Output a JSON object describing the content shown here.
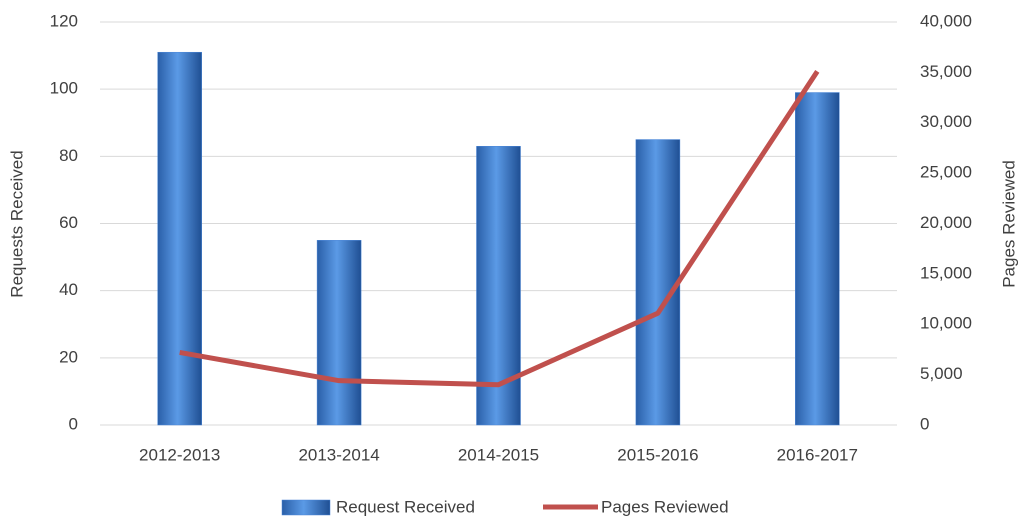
{
  "chart_data": {
    "type": "bar_line",
    "categories": [
      "2012-2013",
      "2013-2014",
      "2014-2015",
      "2015-2016",
      "2016-2017"
    ],
    "series": [
      {
        "name": "Request Received",
        "type": "bar",
        "color": "#4a86d8",
        "values": [
          111,
          55,
          83,
          85,
          99
        ]
      },
      {
        "name": "Pages Reviewed",
        "type": "line",
        "axis": "y2",
        "color": "#c0504d",
        "values": [
          7200,
          4400,
          4000,
          11100,
          35100
        ]
      }
    ],
    "ylabel": "Requests Received",
    "y2label": "Pages Reviewed",
    "ylim": [
      0,
      120
    ],
    "yticks": [
      0,
      20,
      40,
      60,
      80,
      100,
      120
    ],
    "y2lim": [
      0,
      40000
    ],
    "y2ticks": [
      0,
      {
        "value": 5000,
        "label": "5,000"
      },
      {
        "value": 10000,
        "label": "10,000"
      },
      {
        "value": 15000,
        "label": "15,000"
      },
      {
        "value": 20000,
        "label": "20,000"
      },
      {
        "value": 25000,
        "label": "25,000"
      },
      {
        "value": 30000,
        "label": "30,000"
      },
      {
        "value": 35000,
        "label": "35,000"
      },
      {
        "value": 40000,
        "label": "40,000"
      }
    ],
    "grid": true,
    "legend": "bottom"
  }
}
